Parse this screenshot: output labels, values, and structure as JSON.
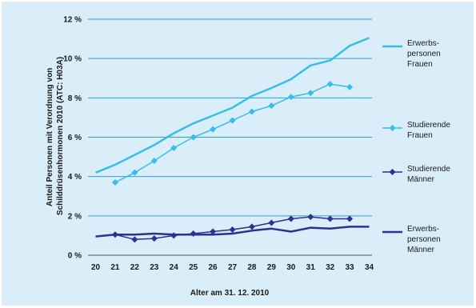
{
  "chart_data": {
    "type": "line",
    "xlabel": "Alter am 31. 12. 2010",
    "ylabel_lines": [
      "Anteil Personen mit Verordnung von",
      "Schilddrüsenhormonen 2010 (ATC: H03A)"
    ],
    "x": [
      20,
      21,
      22,
      23,
      24,
      25,
      26,
      27,
      28,
      29,
      30,
      31,
      32,
      33,
      34
    ],
    "xlim": [
      20,
      34
    ],
    "ylim": [
      0,
      12
    ],
    "yticks": [
      0,
      2,
      4,
      6,
      8,
      10,
      12
    ],
    "ytick_labels": [
      "0 %",
      "2 %",
      "4 %",
      "6 %",
      "8 %",
      "10 %",
      "12 %"
    ],
    "grid": "horizontal",
    "legend_position": "right",
    "series": [
      {
        "name_lines": [
          "Erwerbs-",
          "personen",
          "Frauen"
        ],
        "color": "#38bde9",
        "marker": "none",
        "width": 2.5,
        "x": [
          20,
          21,
          22,
          23,
          24,
          25,
          26,
          27,
          28,
          29,
          30,
          31,
          32,
          33,
          34
        ],
        "values": [
          4.2,
          4.6,
          5.1,
          5.6,
          6.2,
          6.7,
          7.1,
          7.5,
          8.1,
          8.5,
          8.95,
          9.65,
          9.9,
          10.65,
          11.05
        ]
      },
      {
        "name_lines": [
          "Studierende",
          "Frauen"
        ],
        "color": "#38bde9",
        "marker": "diamond",
        "width": 1.5,
        "x": [
          21,
          22,
          23,
          24,
          25,
          26,
          27,
          28,
          29,
          30,
          31,
          32,
          33
        ],
        "values": [
          3.7,
          4.2,
          4.8,
          5.45,
          6.0,
          6.4,
          6.85,
          7.3,
          7.6,
          8.05,
          8.25,
          8.7,
          8.55
        ]
      },
      {
        "name_lines": [
          "Studierende",
          "Männer"
        ],
        "color": "#2e3192",
        "marker": "diamond",
        "width": 1.5,
        "x": [
          21,
          22,
          23,
          24,
          25,
          26,
          27,
          28,
          29,
          30,
          31,
          32,
          33
        ],
        "values": [
          1.05,
          0.8,
          0.85,
          1.0,
          1.1,
          1.2,
          1.3,
          1.45,
          1.65,
          1.85,
          1.95,
          1.85,
          1.85
        ]
      },
      {
        "name_lines": [
          "Erwerbs-",
          "personen",
          "Männer"
        ],
        "color": "#2e3192",
        "marker": "none",
        "width": 2.5,
        "x": [
          20,
          21,
          22,
          23,
          24,
          25,
          26,
          27,
          28,
          29,
          30,
          31,
          32,
          33,
          34
        ],
        "values": [
          0.95,
          1.05,
          1.05,
          1.1,
          1.05,
          1.05,
          1.05,
          1.1,
          1.25,
          1.35,
          1.2,
          1.4,
          1.35,
          1.45,
          1.45
        ]
      }
    ]
  }
}
